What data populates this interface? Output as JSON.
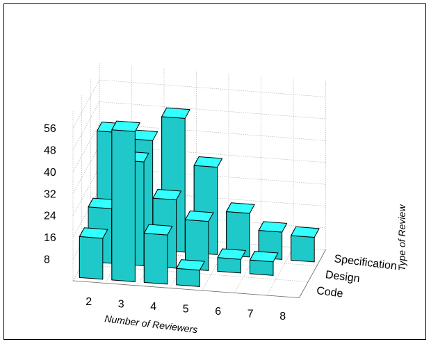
{
  "chart_data": {
    "type": "bar",
    "projection": "3d",
    "title": "",
    "xlabel": "Number of Reviewers",
    "zlabel": "Type of Review",
    "ylabel": "",
    "categories": [
      "2",
      "3",
      "4",
      "5",
      "6",
      "7",
      "8"
    ],
    "yticks": [
      "8",
      "16",
      "24",
      "32",
      "40",
      "48",
      "56"
    ],
    "ylim": [
      0,
      60
    ],
    "series": [
      {
        "name": "Code",
        "values": [
          15,
          55,
          18,
          6,
          0,
          0,
          0
        ]
      },
      {
        "name": "Design",
        "values": [
          20,
          38,
          25,
          18,
          5,
          5,
          0
        ]
      },
      {
        "name": "Specification",
        "values": [
          42,
          40,
          49,
          32,
          16,
          10,
          9
        ]
      }
    ],
    "grid": true,
    "colors": {
      "bar_front": "#1fc9c9",
      "bar_top": "#33ffff",
      "bar_side": "#0e8f8f",
      "grid": "#aaaaaa"
    }
  }
}
